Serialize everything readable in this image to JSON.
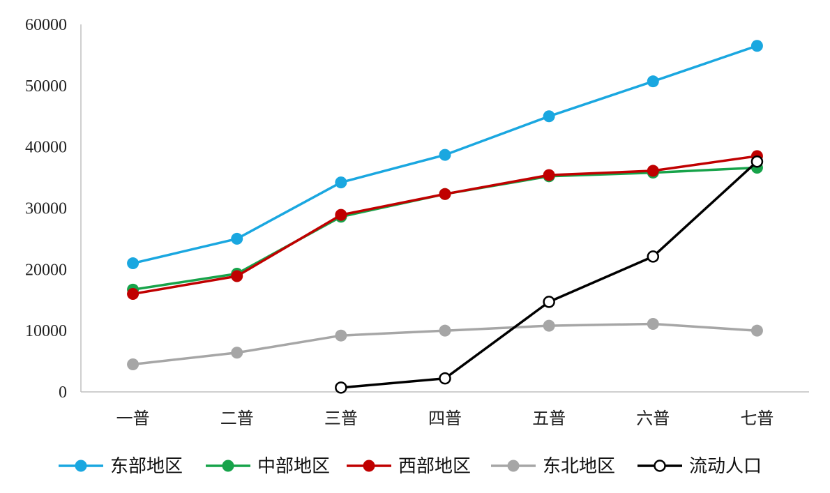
{
  "chart_data": {
    "type": "line",
    "categories": [
      "一普",
      "二普",
      "三普",
      "四普",
      "五普",
      "六普",
      "七普"
    ],
    "ylim": [
      0,
      60000
    ],
    "yticks": [
      0,
      10000,
      20000,
      30000,
      40000,
      50000,
      60000
    ],
    "grid": false,
    "legend_position": "bottom",
    "series": [
      {
        "name": "东部地区",
        "color": "#1aa7e0",
        "marker": "filled",
        "values": [
          21000,
          25000,
          34200,
          38700,
          45000,
          50700,
          56500
        ]
      },
      {
        "name": "中部地区",
        "color": "#17a34a",
        "marker": "filled",
        "values": [
          16700,
          19300,
          28600,
          32300,
          35200,
          35800,
          36600
        ]
      },
      {
        "name": "西部地区",
        "color": "#c00000",
        "marker": "filled",
        "values": [
          16000,
          18900,
          28900,
          32300,
          35400,
          36100,
          38500
        ]
      },
      {
        "name": "东北地区",
        "color": "#a6a6a6",
        "marker": "filled",
        "values": [
          4500,
          6400,
          9200,
          10000,
          10800,
          11100,
          10000
        ]
      },
      {
        "name": "流动人口",
        "color": "#000000",
        "marker": "hollow",
        "values": [
          null,
          null,
          700,
          2200,
          14700,
          22100,
          37600
        ]
      }
    ]
  }
}
